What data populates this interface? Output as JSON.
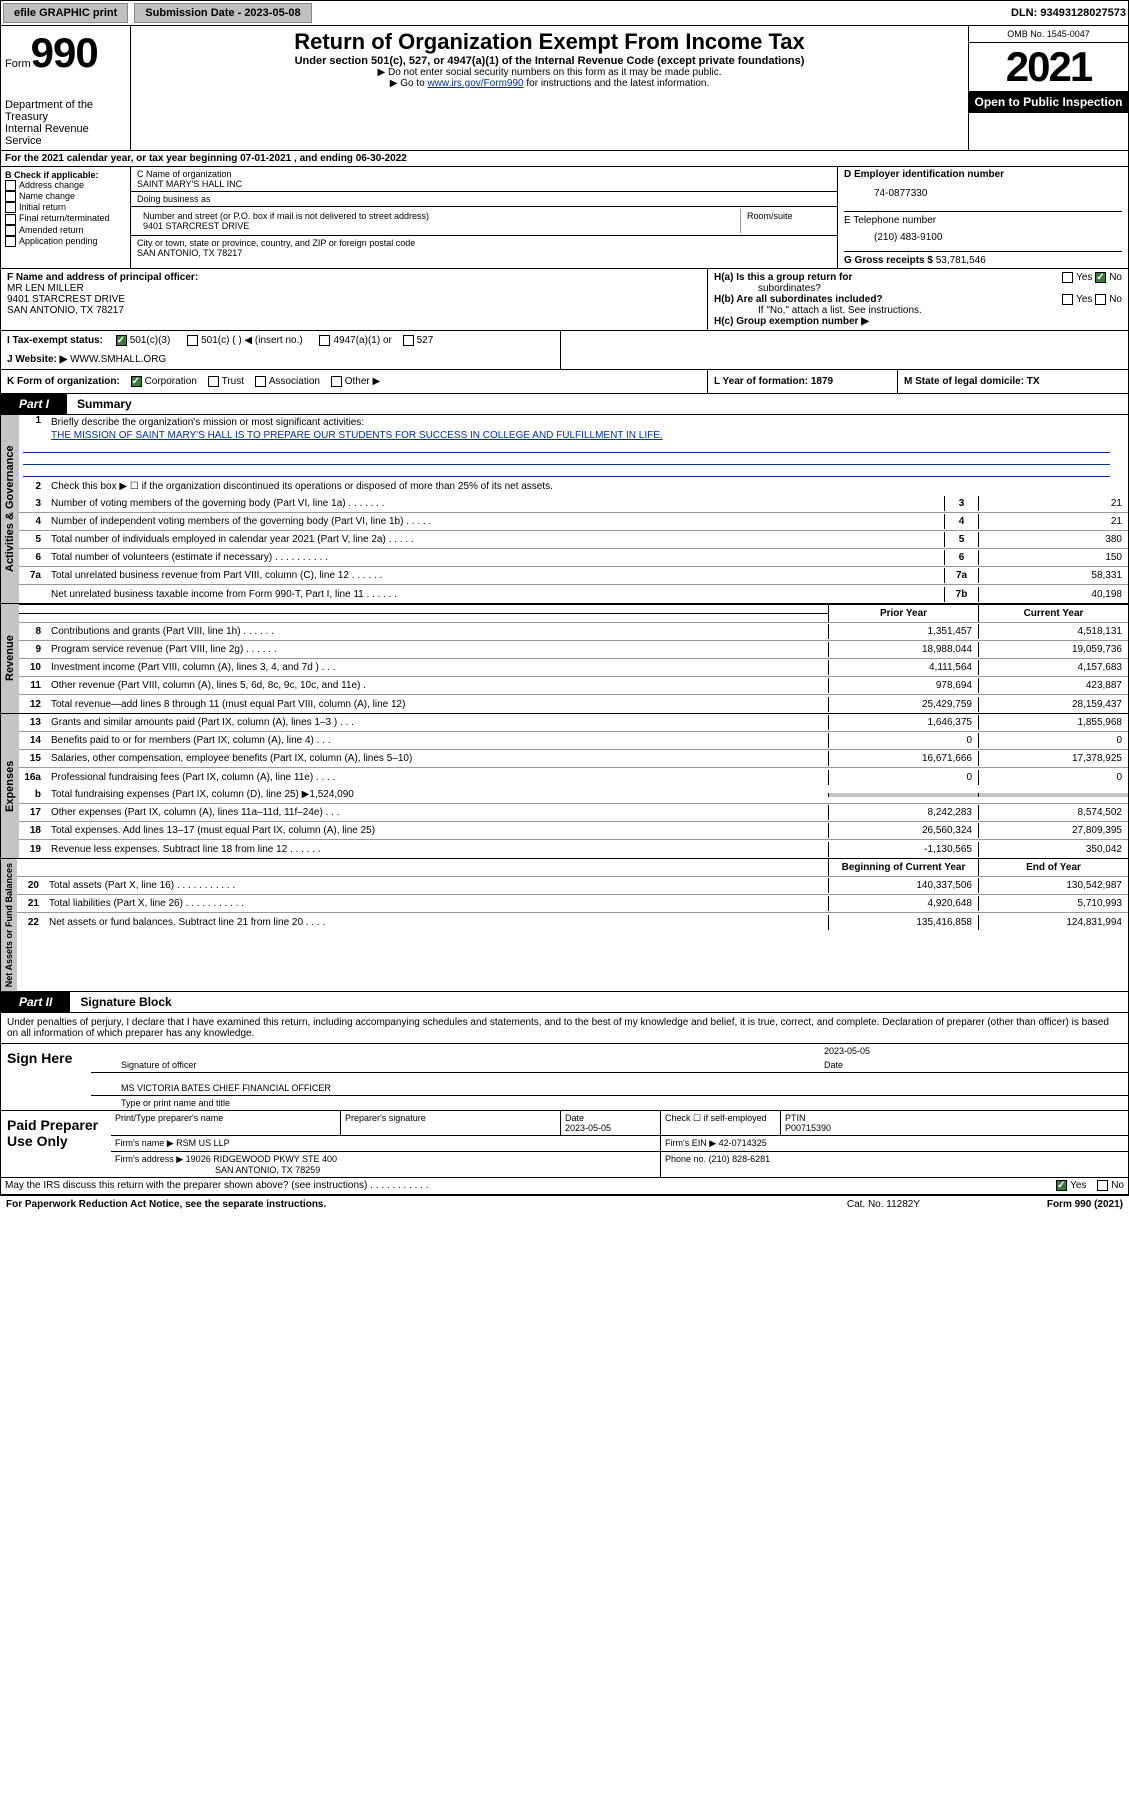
{
  "topbar": {
    "efile": "efile GRAPHIC print",
    "submission_label": "Submission Date - 2023-05-08",
    "dln": "DLN: 93493128027573"
  },
  "header": {
    "form_prefix": "Form",
    "form_number": "990",
    "dept": "Department of the Treasury",
    "irs": "Internal Revenue Service",
    "title": "Return of Organization Exempt From Income Tax",
    "subtitle": "Under section 501(c), 527, or 4947(a)(1) of the Internal Revenue Code (except private foundations)",
    "note1": "▶ Do not enter social security numbers on this form as it may be made public.",
    "note2_pre": "▶ Go to ",
    "note2_link": "www.irs.gov/Form990",
    "note2_post": " for instructions and the latest information.",
    "omb": "OMB No. 1545-0047",
    "year": "2021",
    "inspection": "Open to Public Inspection"
  },
  "row_a": {
    "text": "For the 2021 calendar year, or tax year beginning 07-01-2021    , and ending 06-30-2022"
  },
  "box_b": {
    "label": "B Check if applicable:",
    "items": [
      "Address change",
      "Name change",
      "Initial return",
      "Final return/terminated",
      "Amended return",
      "Application pending"
    ]
  },
  "box_c": {
    "name_label": "C Name of organization",
    "name": "SAINT MARY'S HALL INC",
    "dba_label": "Doing business as",
    "addr_label": "Number and street (or P.O. box if mail is not delivered to street address)",
    "room_label": "Room/suite",
    "addr": "9401 STARCREST DRIVE",
    "city_label": "City or town, state or province, country, and ZIP or foreign postal code",
    "city": "SAN ANTONIO, TX  78217"
  },
  "box_d": {
    "label": "D Employer identification number",
    "ein": "74-0877330"
  },
  "box_e": {
    "label": "E Telephone number",
    "phone": "(210) 483-9100"
  },
  "box_g": {
    "label": "G Gross receipts $",
    "amount": "53,781,546"
  },
  "box_f": {
    "label": "F Name and address of principal officer:",
    "name": "MR LEN MILLER",
    "addr1": "9401 STARCREST DRIVE",
    "addr2": "SAN ANTONIO, TX  78217"
  },
  "box_h": {
    "ha_label": "H(a)  Is this a group return for",
    "ha_sub": "subordinates?",
    "hb_label": "H(b)  Are all subordinates included?",
    "hb_note": "If \"No,\" attach a list. See instructions.",
    "hc_label": "H(c)  Group exemption number ▶"
  },
  "row_i": {
    "label": "I    Tax-exempt status:",
    "opt1": "501(c)(3)",
    "opt2": "501(c) (   ) ◀ (insert no.)",
    "opt3": "4947(a)(1) or",
    "opt4": "527"
  },
  "row_j": {
    "label": "J    Website: ▶",
    "url": "WWW.SMHALL.ORG"
  },
  "row_k": {
    "label": "K Form of organization:",
    "opts": [
      "Corporation",
      "Trust",
      "Association",
      "Other ▶"
    ],
    "l_label": "L Year of formation: 1879",
    "m_label": "M State of legal domicile: TX"
  },
  "part1": {
    "tab": "Part I",
    "title": "Summary",
    "vert_gov": "Activities & Governance",
    "vert_rev": "Revenue",
    "vert_exp": "Expenses",
    "vert_net": "Net Assets or Fund Balances",
    "line1_label": "Briefly describe the organization's mission or most significant activities:",
    "line1_text": "THE MISSION OF SAINT MARY'S HALL IS TO PREPARE OUR STUDENTS FOR SUCCESS IN COLLEGE AND FULFILLMENT IN LIFE.",
    "line2": "Check this box ▶ ☐  if the organization discontinued its operations or disposed of more than 25% of its net assets.",
    "lines_top": [
      {
        "n": "3",
        "t": "Number of voting members of the governing body (Part VI, line 1a)    .    .    .    .    .    .    .",
        "box": "3",
        "v": "21"
      },
      {
        "n": "4",
        "t": "Number of independent voting members of the governing body (Part VI, line 1b)    .    .    .    .    .",
        "box": "4",
        "v": "21"
      },
      {
        "n": "5",
        "t": "Total number of individuals employed in calendar year 2021 (Part V, line 2a)    .    .    .    .    .",
        "box": "5",
        "v": "380"
      },
      {
        "n": "6",
        "t": "Total number of volunteers (estimate if necessary)    .    .    .    .    .    .    .    .    .    .",
        "box": "6",
        "v": "150"
      },
      {
        "n": "7a",
        "t": "Total unrelated business revenue from Part VIII, column (C), line 12    .    .    .    .    .    .",
        "box": "7a",
        "v": "58,331"
      },
      {
        "n": "",
        "t": "Net unrelated business taxable income from Form 990-T, Part I, line 11    .    .    .    .    .    .",
        "box": "7b",
        "v": "40,198"
      }
    ],
    "hdr_prior": "Prior Year",
    "hdr_curr": "Current Year",
    "lines_rev": [
      {
        "n": "8",
        "t": "Contributions and grants (Part VIII, line 1h)    .    .    .    .    .    .",
        "p": "1,351,457",
        "c": "4,518,131"
      },
      {
        "n": "9",
        "t": "Program service revenue (Part VIII, line 2g)    .    .    .    .    .    .",
        "p": "18,988,044",
        "c": "19,059,736"
      },
      {
        "n": "10",
        "t": "Investment income (Part VIII, column (A), lines 3, 4, and 7d )    .    .    .",
        "p": "4,111,564",
        "c": "4,157,683"
      },
      {
        "n": "11",
        "t": "Other revenue (Part VIII, column (A), lines 5, 6d, 8c, 9c, 10c, and 11e)    .",
        "p": "978,694",
        "c": "423,887"
      },
      {
        "n": "12",
        "t": "Total revenue—add lines 8 through 11 (must equal Part VIII, column (A), line 12)",
        "p": "25,429,759",
        "c": "28,159,437"
      }
    ],
    "lines_exp": [
      {
        "n": "13",
        "t": "Grants and similar amounts paid (Part IX, column (A), lines 1–3 )    .    .    .",
        "p": "1,646,375",
        "c": "1,855,968"
      },
      {
        "n": "14",
        "t": "Benefits paid to or for members (Part IX, column (A), line 4)    .    .    .",
        "p": "0",
        "c": "0"
      },
      {
        "n": "15",
        "t": "Salaries, other compensation, employee benefits (Part IX, column (A), lines 5–10)",
        "p": "16,671,666",
        "c": "17,378,925"
      },
      {
        "n": "16a",
        "t": "Professional fundraising fees (Part IX, column (A), line 11e)    .    .    .    .",
        "p": "0",
        "c": "0"
      }
    ],
    "line16b": {
      "n": "b",
      "t": "Total fundraising expenses (Part IX, column (D), line 25) ▶1,524,090"
    },
    "lines_exp2": [
      {
        "n": "17",
        "t": "Other expenses (Part IX, column (A), lines 11a–11d, 11f–24e)    .    .    .",
        "p": "8,242,283",
        "c": "8,574,502"
      },
      {
        "n": "18",
        "t": "Total expenses. Add lines 13–17 (must equal Part IX, column (A), line 25)",
        "p": "26,560,324",
        "c": "27,809,395"
      },
      {
        "n": "19",
        "t": "Revenue less expenses. Subtract line 18 from line 12    .    .    .    .    .    .",
        "p": "-1,130,565",
        "c": "350,042"
      }
    ],
    "hdr_beg": "Beginning of Current Year",
    "hdr_end": "End of Year",
    "lines_net": [
      {
        "n": "20",
        "t": "Total assets (Part X, line 16)    .    .    .    .    .    .    .    .    .    .    .",
        "p": "140,337,506",
        "c": "130,542,987"
      },
      {
        "n": "21",
        "t": "Total liabilities (Part X, line 26)    .    .    .    .    .    .    .    .    .    .    .",
        "p": "4,920,648",
        "c": "5,710,993"
      },
      {
        "n": "22",
        "t": "Net assets or fund balances. Subtract line 21 from line 20    .    .    .    .",
        "p": "135,416,858",
        "c": "124,831,994"
      }
    ]
  },
  "part2": {
    "tab": "Part II",
    "title": "Signature Block",
    "declaration": "Under penalties of perjury, I declare that I have examined this return, including accompanying schedules and statements, and to the best of my knowledge and belief, it is true, correct, and complete. Declaration of preparer (other than officer) is based on all information of which preparer has any knowledge."
  },
  "sign": {
    "label": "Sign Here",
    "sig_label": "Signature of officer",
    "date_label": "Date",
    "date": "2023-05-05",
    "name": "MS VICTORIA BATES  CHIEF FINANCIAL OFFICER",
    "type_label": "Type or print name and title"
  },
  "prep": {
    "label": "Paid Preparer Use Only",
    "hdr": [
      "Print/Type preparer's name",
      "Preparer's signature",
      "Date",
      "Check ☐ if self-employed",
      "PTIN"
    ],
    "date": "2023-05-05",
    "ptin": "P00715390",
    "firm_label": "Firm's name    ▶",
    "firm": "RSM US LLP",
    "ein_label": "Firm's EIN ▶",
    "ein": "42-0714325",
    "addr_label": "Firm's address ▶",
    "addr1": "19026 RIDGEWOOD PKWY STE 400",
    "addr2": "SAN ANTONIO, TX  78259",
    "phone_label": "Phone no.",
    "phone": "(210) 828-6281"
  },
  "footer": {
    "discuss": "May the IRS discuss this return with the preparer shown above? (see instructions)    .    .    .    .    .    .    .    .    .    .    .",
    "yes": "Yes",
    "no": "No",
    "paperwork": "For Paperwork Reduction Act Notice, see the separate instructions.",
    "cat": "Cat. No. 11282Y",
    "form": "Form 990 (2021)"
  }
}
